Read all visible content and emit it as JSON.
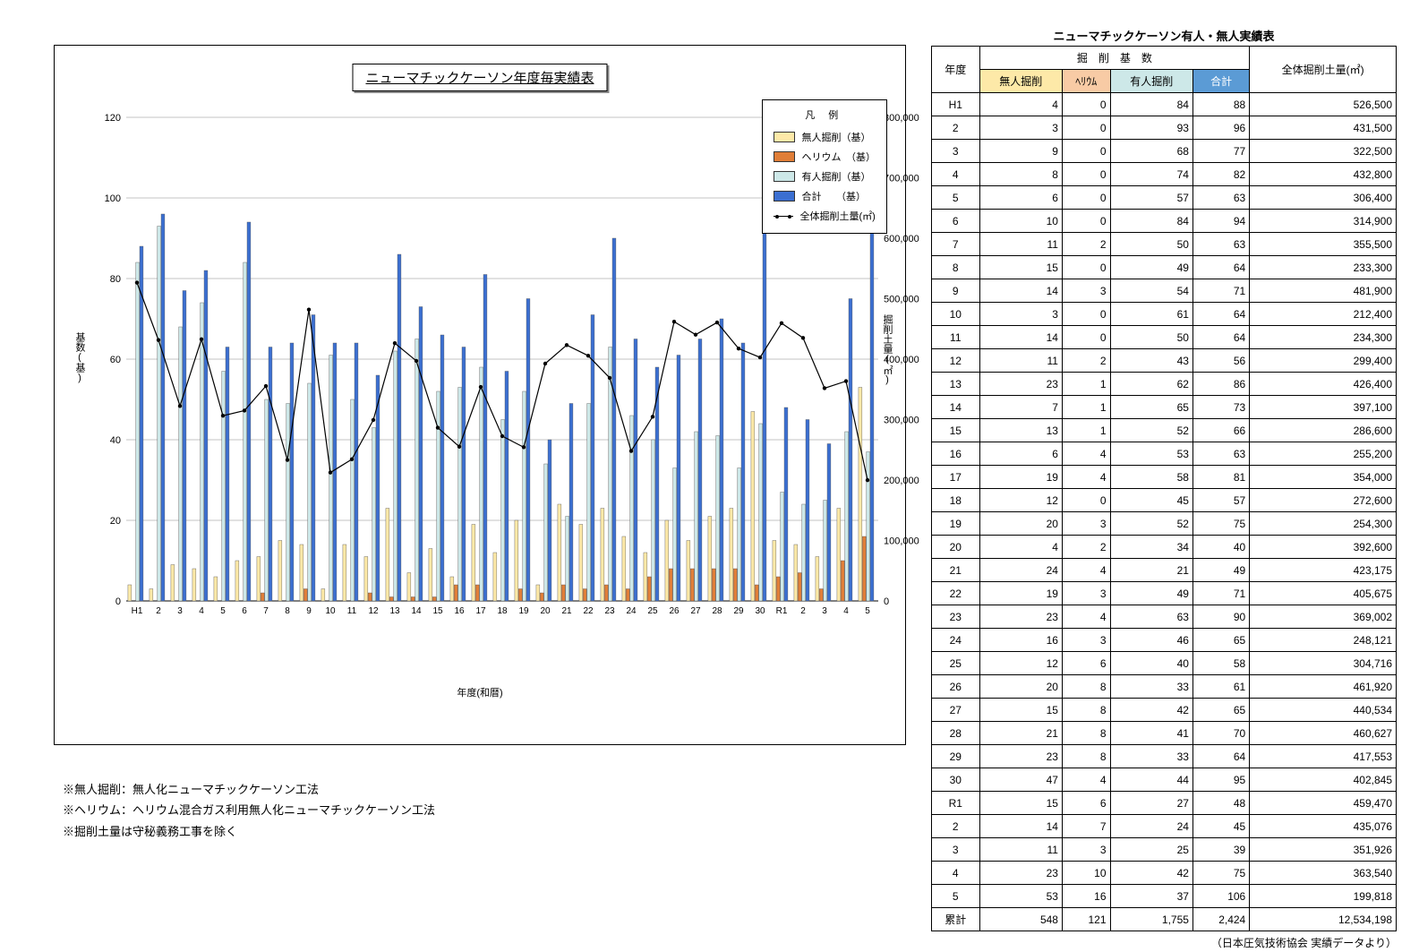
{
  "chart": {
    "title": "ニューマチックケーソン年度毎実績表",
    "legend_title": "凡 例",
    "legend_items": [
      {
        "label": "無人掘削（基）",
        "color": "#fde9a8",
        "type": "bar"
      },
      {
        "label": "ヘリウム　（基）",
        "color": "#e07e38",
        "type": "bar"
      },
      {
        "label": "有人掘削（基）",
        "color": "#cde8e8",
        "type": "bar"
      },
      {
        "label": "合計　　（基）",
        "color": "#3b6fd1",
        "type": "bar"
      },
      {
        "label": "全体掘削土量(㎡)",
        "color": "#000",
        "type": "line"
      }
    ],
    "y_left": {
      "label": "基数(基)",
      "min": 0,
      "max": 120,
      "step": 20
    },
    "y_right": {
      "label": "掘削土量(㎡)",
      "min": 0,
      "max": 800000,
      "step": 100000
    },
    "x_label": "年度(和暦)",
    "categories": [
      "H1",
      "2",
      "3",
      "4",
      "5",
      "6",
      "7",
      "8",
      "9",
      "10",
      "11",
      "12",
      "13",
      "14",
      "15",
      "16",
      "17",
      "18",
      "19",
      "20",
      "21",
      "22",
      "23",
      "24",
      "25",
      "26",
      "27",
      "28",
      "29",
      "30",
      "R1",
      "2",
      "3",
      "4",
      "5"
    ],
    "series": {
      "mujin": [
        4,
        3,
        9,
        8,
        6,
        10,
        11,
        15,
        14,
        3,
        14,
        11,
        23,
        7,
        13,
        6,
        19,
        12,
        20,
        4,
        24,
        19,
        23,
        16,
        12,
        20,
        15,
        21,
        23,
        47,
        15,
        14,
        11,
        23,
        53
      ],
      "helium": [
        0,
        0,
        0,
        0,
        0,
        0,
        2,
        0,
        3,
        0,
        0,
        2,
        1,
        1,
        1,
        4,
        4,
        0,
        3,
        2,
        4,
        3,
        4,
        3,
        6,
        8,
        8,
        8,
        8,
        4,
        6,
        7,
        3,
        10,
        16
      ],
      "yujin": [
        84,
        93,
        68,
        74,
        57,
        84,
        50,
        49,
        54,
        61,
        50,
        43,
        62,
        65,
        52,
        53,
        58,
        45,
        52,
        34,
        21,
        49,
        63,
        46,
        40,
        33,
        42,
        41,
        33,
        44,
        27,
        24,
        25,
        42,
        37
      ],
      "total": [
        88,
        96,
        77,
        82,
        63,
        94,
        63,
        64,
        71,
        64,
        64,
        56,
        86,
        73,
        66,
        63,
        81,
        57,
        75,
        40,
        49,
        71,
        90,
        65,
        58,
        61,
        65,
        70,
        64,
        95,
        48,
        45,
        39,
        75,
        106
      ],
      "volume": [
        526500,
        431500,
        322500,
        432800,
        306400,
        314900,
        355500,
        233300,
        481900,
        212400,
        234300,
        299400,
        426400,
        397100,
        286600,
        255200,
        354000,
        272600,
        254300,
        392600,
        423175,
        405675,
        369002,
        248121,
        304716,
        461920,
        440534,
        460627,
        417553,
        402845,
        459470,
        435076,
        351926,
        363540,
        199818
      ]
    },
    "bar_colors": {
      "mujin": "#fde9a8",
      "helium": "#e07e38",
      "yujin": "#cde8e8",
      "total": "#3b6fd1"
    },
    "line_color": "#000",
    "grid_color": "#888888",
    "bg": "#ffffff"
  },
  "notes": [
    "※無人掘削：無人化ニューマチックケーソン工法",
    "※ヘリウム：ヘリウム混合ガス利用無人化ニューマチックケーソン工法",
    "※掘削土量は守秘義務工事を除く"
  ],
  "table": {
    "title": "ニューマチックケーソン有人・無人実績表",
    "head1": "掘　削　基　数",
    "cols": [
      "年度",
      "無人掘削",
      "ﾍﾘｳﾑ",
      "有人掘削",
      "合計",
      "全体掘削土量(㎡)"
    ],
    "rows": [
      [
        "H1",
        4,
        0,
        84,
        88,
        "526,500"
      ],
      [
        "2",
        3,
        0,
        93,
        96,
        "431,500"
      ],
      [
        "3",
        9,
        0,
        68,
        77,
        "322,500"
      ],
      [
        "4",
        8,
        0,
        74,
        82,
        "432,800"
      ],
      [
        "5",
        6,
        0,
        57,
        63,
        "306,400"
      ],
      [
        "6",
        10,
        0,
        84,
        94,
        "314,900"
      ],
      [
        "7",
        11,
        2,
        50,
        63,
        "355,500"
      ],
      [
        "8",
        15,
        0,
        49,
        64,
        "233,300"
      ],
      [
        "9",
        14,
        3,
        54,
        71,
        "481,900"
      ],
      [
        "10",
        3,
        0,
        61,
        64,
        "212,400"
      ],
      [
        "11",
        14,
        0,
        50,
        64,
        "234,300"
      ],
      [
        "12",
        11,
        2,
        43,
        56,
        "299,400"
      ],
      [
        "13",
        23,
        1,
        62,
        86,
        "426,400"
      ],
      [
        "14",
        7,
        1,
        65,
        73,
        "397,100"
      ],
      [
        "15",
        13,
        1,
        52,
        66,
        "286,600"
      ],
      [
        "16",
        6,
        4,
        53,
        63,
        "255,200"
      ],
      [
        "17",
        19,
        4,
        58,
        81,
        "354,000"
      ],
      [
        "18",
        12,
        0,
        45,
        57,
        "272,600"
      ],
      [
        "19",
        20,
        3,
        52,
        75,
        "254,300"
      ],
      [
        "20",
        4,
        2,
        34,
        40,
        "392,600"
      ],
      [
        "21",
        24,
        4,
        21,
        49,
        "423,175"
      ],
      [
        "22",
        19,
        3,
        49,
        71,
        "405,675"
      ],
      [
        "23",
        23,
        4,
        63,
        90,
        "369,002"
      ],
      [
        "24",
        16,
        3,
        46,
        65,
        "248,121"
      ],
      [
        "25",
        12,
        6,
        40,
        58,
        "304,716"
      ],
      [
        "26",
        20,
        8,
        33,
        61,
        "461,920"
      ],
      [
        "27",
        15,
        8,
        42,
        65,
        "440,534"
      ],
      [
        "28",
        21,
        8,
        41,
        70,
        "460,627"
      ],
      [
        "29",
        23,
        8,
        33,
        64,
        "417,553"
      ],
      [
        "30",
        47,
        4,
        44,
        95,
        "402,845"
      ],
      [
        "R1",
        15,
        6,
        27,
        48,
        "459,470"
      ],
      [
        "2",
        14,
        7,
        24,
        45,
        "435,076"
      ],
      [
        "3",
        11,
        3,
        25,
        39,
        "351,926"
      ],
      [
        "4",
        23,
        10,
        42,
        75,
        "363,540"
      ],
      [
        "5",
        53,
        16,
        37,
        106,
        "199,818"
      ]
    ],
    "totals_label": "累計",
    "totals": [
      548,
      121,
      "1,755",
      "2,424",
      "12,534,198"
    ],
    "footer": "（日本圧気技術協会 実績データより）"
  }
}
